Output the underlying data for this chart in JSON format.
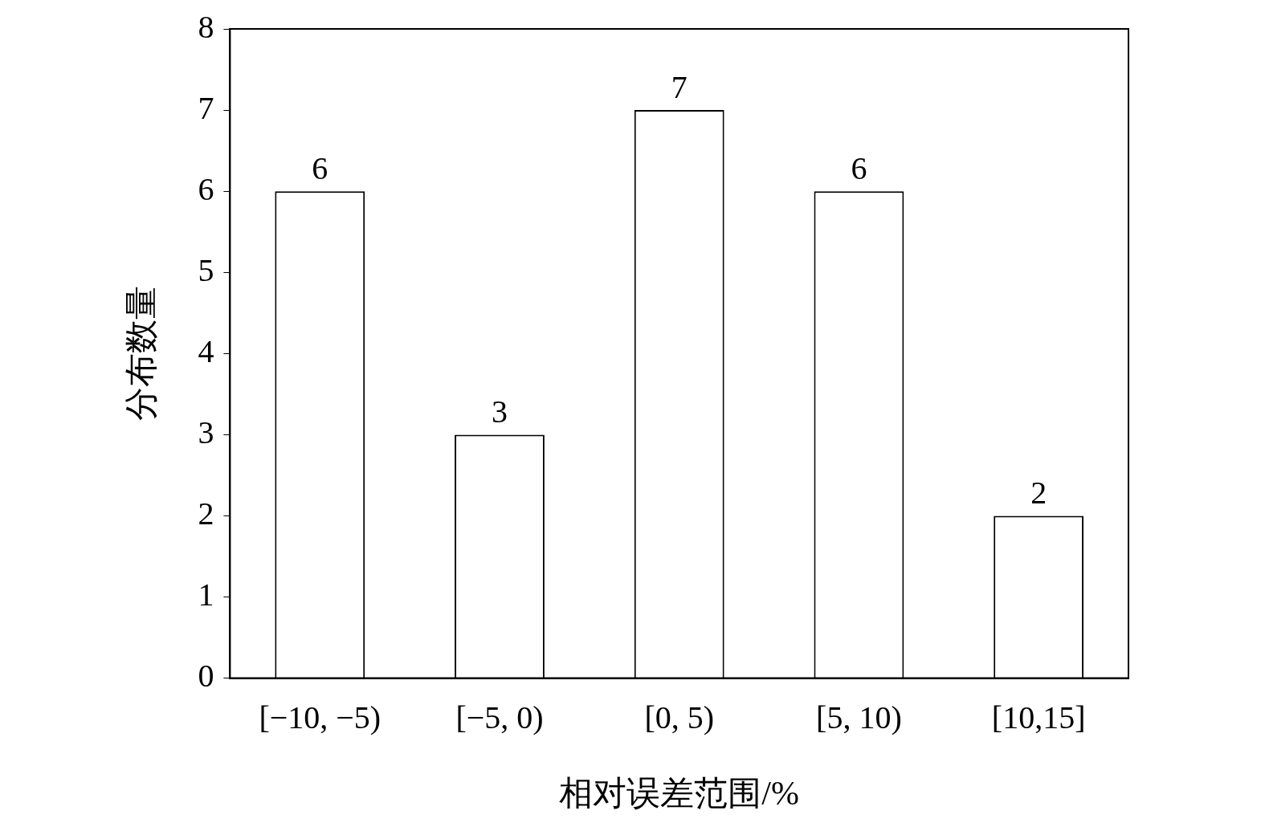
{
  "chart_data": {
    "type": "bar",
    "xlabel": "相对误差范围/%",
    "ylabel": "分布数量",
    "categories": [
      "[−10, −5)",
      "[−5, 0)",
      "[0, 5)",
      "[5, 10)",
      "[10,15]"
    ],
    "values": [
      6,
      3,
      7,
      6,
      2
    ],
    "color": "#ffffff",
    "ylim": [
      0,
      8
    ],
    "yticks": [
      0,
      1,
      2,
      3,
      4,
      5,
      6,
      7,
      8
    ],
    "grid": false,
    "legend": false,
    "data_labels": true
  }
}
